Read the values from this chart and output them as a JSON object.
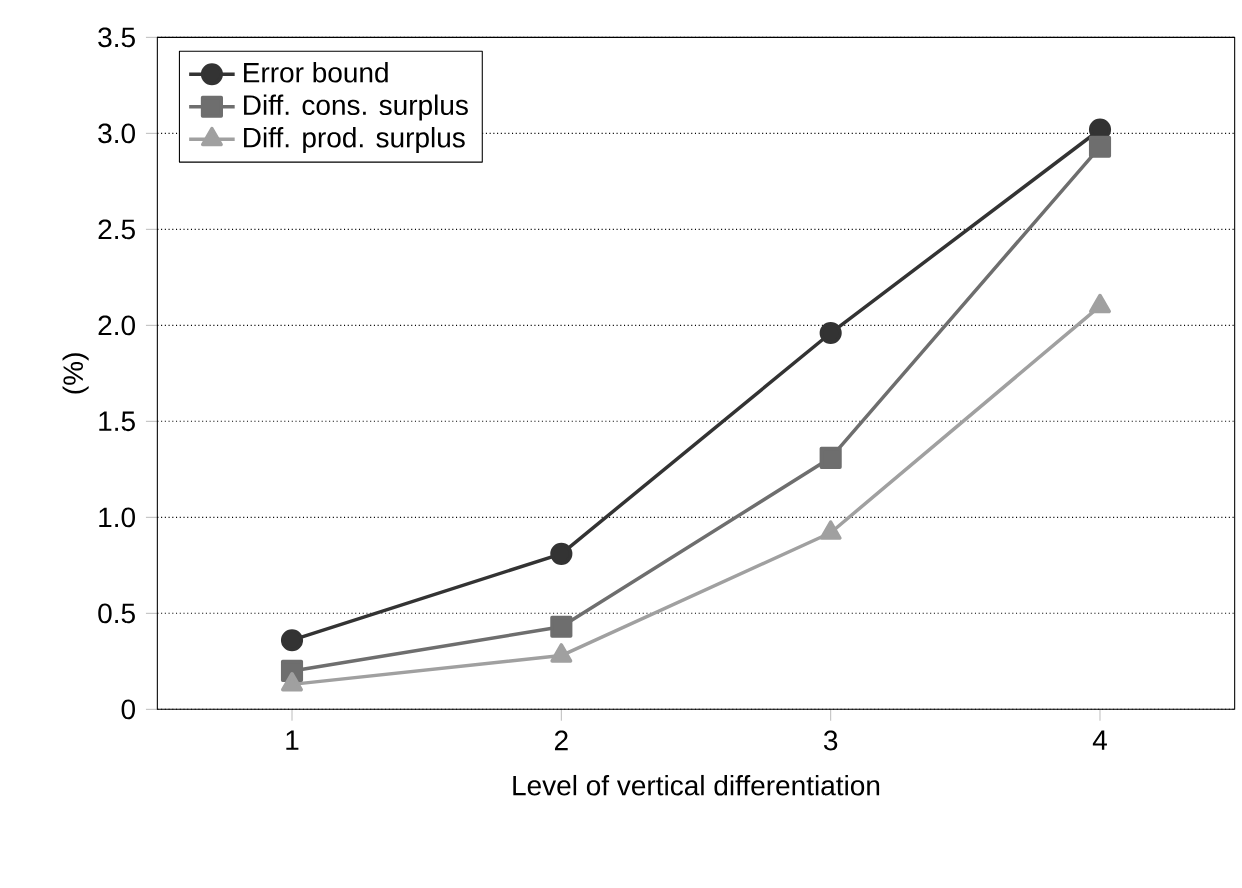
{
  "chart_data": {
    "type": "line",
    "xlabel": "Level of vertical differentiation",
    "ylabel": "(%)",
    "categories": [
      "1",
      "2",
      "3",
      "4"
    ],
    "series": [
      {
        "name": "Error bound",
        "color": "#333333",
        "marker": "circle",
        "values": [
          0.36,
          0.81,
          1.96,
          3.02
        ]
      },
      {
        "name": "Diff. cons. surplus",
        "color": "#6e6e6e",
        "marker": "square",
        "values": [
          0.2,
          0.43,
          1.31,
          2.93
        ]
      },
      {
        "name": "Diff. prod. surplus",
        "color": "#a0a0a0",
        "marker": "triangle",
        "values": [
          0.13,
          0.28,
          0.92,
          2.1
        ]
      }
    ],
    "ylim": [
      0,
      3.5
    ],
    "yticks": [
      0,
      0.5,
      {
        "value": 1,
        "label": "1.0"
      },
      1.5,
      {
        "value": 2,
        "label": "2.0"
      },
      2.5,
      {
        "value": 3,
        "label": "3.0"
      },
      3.5
    ],
    "grid": "y",
    "legend": "top left",
    "line_style": "solid"
  }
}
